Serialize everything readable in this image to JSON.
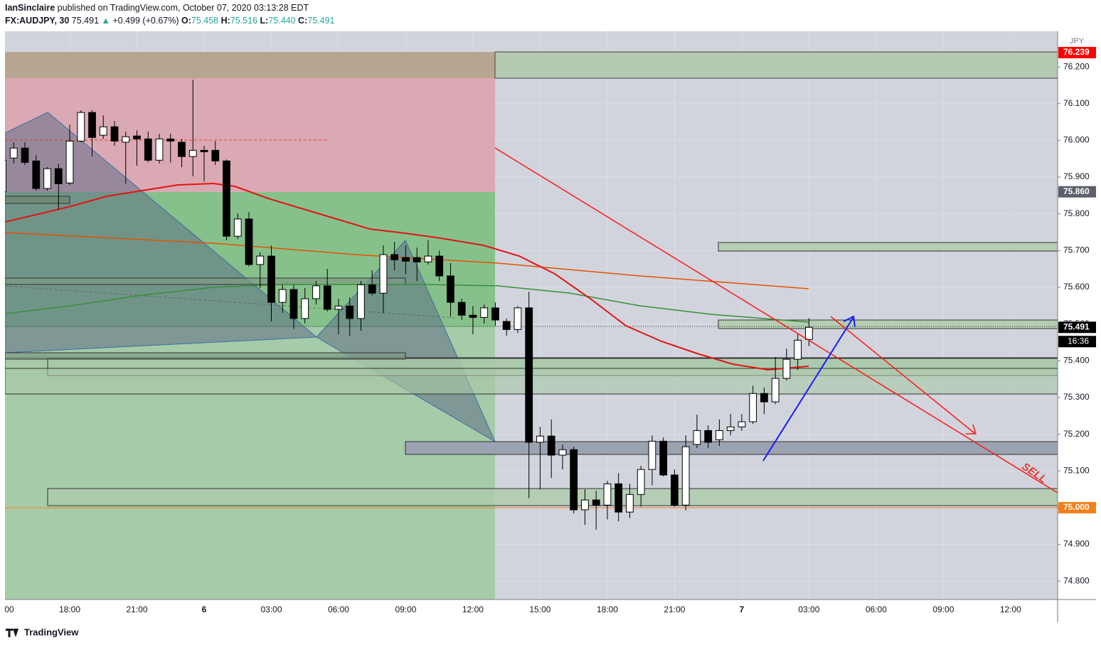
{
  "header": {
    "author": "IanSinclaire",
    "published": "published on TradingView.com, October 07, 2020 03:13:28 EDT",
    "symbol": "FX:AUDJPY, 30",
    "last": "75.491",
    "arrow": "▲",
    "change": "+0.499 (+0.67%)",
    "o_label": "O:",
    "o": "75.458",
    "h_label": "H:",
    "h": "75.516",
    "l_label": "L:",
    "l": "75.440",
    "c_label": "C:",
    "c": "75.491"
  },
  "chart_data": {
    "type": "candlestick",
    "currency": "JPY",
    "up_color": "#ffffff",
    "down_color": "#000000",
    "grid": true,
    "open": [
      75.86,
      75.952,
      75.979,
      75.944,
      75.869,
      75.923,
      75.884,
      75.998,
      76.076,
      76.014,
      76.037,
      75.995,
      76.012,
      76.004,
      75.946,
      76.004,
      75.995,
      75.956,
      75.973,
      75.973,
      75.944,
      75.739,
      75.786,
      75.662,
      75.685,
      75.559,
      75.594,
      75.515,
      75.569,
      75.604,
      75.54,
      75.549,
      75.515,
      75.607,
      75.584,
      75.689,
      75.681,
      75.681,
      75.669,
      75.685,
      75.631,
      75.559,
      75.524,
      75.518,
      75.544,
      75.507,
      75.485,
      75.544,
      75.178,
      75.195,
      75.143,
      75.158,
      74.994,
      75.021,
      75.007,
      75.065,
      74.988,
      75.036,
      75.104,
      75.181,
      75.089,
      75.007,
      75.172,
      75.21,
      75.185,
      75.21,
      75.22,
      75.234,
      75.311,
      75.288,
      75.352,
      75.404,
      75.458
    ],
    "high": [
      75.96,
      75.995,
      75.995,
      75.96,
      75.927,
      75.937,
      76.043,
      76.082,
      76.082,
      76.068,
      76.053,
      76.024,
      76.027,
      76.024,
      76.018,
      76.018,
      76.004,
      76.165,
      75.985,
      75.998,
      75.948,
      75.801,
      75.805,
      75.695,
      75.714,
      75.607,
      75.607,
      75.598,
      75.617,
      75.65,
      75.569,
      75.573,
      75.617,
      75.646,
      75.714,
      75.724,
      75.714,
      75.708,
      75.728,
      75.7,
      75.666,
      75.569,
      75.549,
      75.553,
      75.559,
      75.515,
      75.549,
      75.588,
      75.22,
      75.24,
      75.172,
      75.166,
      75.05,
      75.046,
      75.073,
      75.094,
      75.065,
      75.114,
      75.197,
      75.191,
      75.104,
      75.197,
      75.253,
      75.224,
      75.24,
      75.255,
      75.255,
      75.332,
      75.327,
      75.41,
      75.433,
      75.472,
      75.516
    ],
    "low": [
      75.85,
      75.937,
      75.933,
      75.863,
      75.863,
      75.811,
      75.879,
      75.995,
      75.956,
      76.004,
      75.985,
      75.882,
      75.931,
      75.94,
      75.937,
      75.94,
      75.927,
      75.902,
      75.888,
      75.933,
      75.728,
      75.731,
      75.656,
      75.598,
      75.507,
      75.53,
      75.487,
      75.501,
      75.553,
      75.534,
      75.472,
      75.468,
      75.482,
      75.578,
      75.53,
      75.646,
      75.636,
      75.617,
      75.662,
      75.617,
      75.52,
      75.511,
      75.472,
      75.501,
      75.495,
      75.468,
      75.476,
      75.026,
      75.05,
      75.081,
      75.104,
      74.984,
      74.953,
      74.94,
      74.968,
      74.963,
      74.972,
      75.003,
      75.061,
      75.085,
      75.003,
      74.992,
      75.162,
      75.162,
      75.168,
      75.197,
      75.209,
      75.228,
      75.255,
      75.282,
      75.346,
      75.375,
      75.44
    ],
    "close": [
      75.946,
      75.979,
      75.94,
      75.869,
      75.923,
      75.882,
      75.998,
      76.076,
      76.008,
      76.037,
      75.998,
      76.01,
      76.004,
      75.946,
      76.004,
      75.998,
      75.956,
      75.973,
      75.969,
      75.944,
      75.739,
      75.786,
      75.662,
      75.685,
      75.559,
      75.594,
      75.515,
      75.569,
      75.604,
      75.54,
      75.549,
      75.515,
      75.607,
      75.584,
      75.689,
      75.675,
      75.671,
      75.669,
      75.685,
      75.631,
      75.559,
      75.524,
      75.518,
      75.544,
      75.511,
      75.485,
      75.544,
      75.178,
      75.195,
      75.143,
      75.158,
      74.994,
      75.021,
      75.007,
      75.065,
      74.988,
      75.036,
      75.104,
      75.181,
      75.089,
      75.007,
      75.166,
      75.21,
      75.178,
      75.21,
      75.22,
      75.234,
      75.311,
      75.288,
      75.352,
      75.404,
      75.456,
      75.491
    ],
    "xlim": [
      0.22,
      94.2
    ],
    "xticks": [
      {
        "value": 0,
        "label": "00"
      },
      {
        "value": 6,
        "label": "18:00"
      },
      {
        "value": 12,
        "label": "21:00"
      },
      {
        "value": 18,
        "label": "6"
      },
      {
        "value": 24,
        "label": "03:00"
      },
      {
        "value": 30,
        "label": "06:00"
      },
      {
        "value": 36,
        "label": "09:00"
      },
      {
        "value": 42,
        "label": "12:00"
      },
      {
        "value": 48,
        "label": "15:00"
      },
      {
        "value": 54,
        "label": "18:00"
      },
      {
        "value": 60,
        "label": "21:00"
      },
      {
        "value": 66,
        "label": "7"
      },
      {
        "value": 72,
        "label": "03:00"
      },
      {
        "value": 78,
        "label": "06:00"
      },
      {
        "value": 84,
        "label": "09:00"
      },
      {
        "value": 90,
        "label": "12:00"
      }
    ],
    "ylim": [
      74.75,
      76.297
    ],
    "yticks": [
      {
        "value": 74.8,
        "label": "74.800"
      },
      {
        "value": 74.9,
        "label": "74.900"
      },
      {
        "value": 75.0,
        "label": "75.000"
      },
      {
        "value": 75.1,
        "label": "75.100"
      },
      {
        "value": 75.2,
        "label": "75.200"
      },
      {
        "value": 75.3,
        "label": "75.300"
      },
      {
        "value": 75.4,
        "label": "75.400"
      },
      {
        "value": 75.5,
        "label": "75.500"
      },
      {
        "value": 75.6,
        "label": "75.600"
      },
      {
        "value": 75.7,
        "label": "75.700"
      },
      {
        "value": 75.8,
        "label": "75.800"
      },
      {
        "value": 75.9,
        "label": "75.900"
      },
      {
        "value": 76.0,
        "label": "76.000"
      },
      {
        "value": 76.1,
        "label": "76.100"
      },
      {
        "value": 76.2,
        "label": "76.200"
      }
    ],
    "price_labels": [
      {
        "value": 76.239,
        "label": "76.239",
        "color": "#ff0000"
      },
      {
        "value": 75.86,
        "label": "75.860",
        "color": "#5d606b"
      },
      {
        "value": 75.491,
        "label": "75.491",
        "color": "#000000"
      },
      {
        "value": 75.0,
        "label": "75.000",
        "color": "#f57f17"
      }
    ],
    "countdown": "16:36",
    "annotation": "SELL"
  },
  "footer": {
    "logo": "TradingView"
  }
}
